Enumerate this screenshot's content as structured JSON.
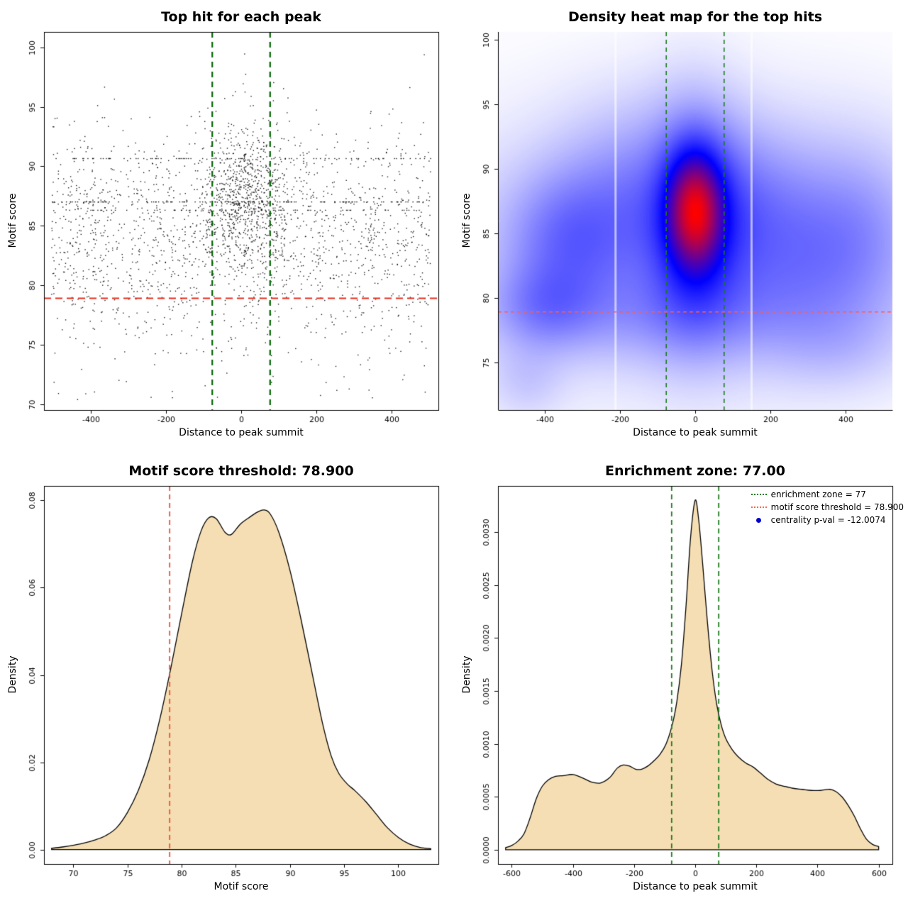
{
  "figure": {
    "background": "#ffffff"
  },
  "chart_data": [
    {
      "type": "scatter",
      "title": "Top hit for each peak",
      "xlabel": "Distance to peak summit",
      "ylabel": "Motif score",
      "xlim": [
        -525,
        525
      ],
      "ylim": [
        69.5,
        101.3
      ],
      "xticks": [
        -400,
        -200,
        0,
        200,
        400
      ],
      "xtick_labels": [
        "-400",
        "-200",
        "0",
        "200",
        "400"
      ],
      "yticks": [
        70,
        75,
        80,
        85,
        90,
        95,
        100
      ],
      "ytick_labels": [
        "70",
        "75",
        "80",
        "85",
        "90",
        "95",
        "100"
      ],
      "box": true,
      "point_color": "#000000",
      "point_size": 1.4,
      "seed": 20240807,
      "clusters": [
        {
          "n": 1650,
          "x": {
            "dist": "uniform",
            "min": -505,
            "max": 505
          },
          "y": {
            "dist": "normal",
            "mean": 84.3,
            "sd": 4.4
          }
        },
        {
          "n": 780,
          "x": {
            "dist": "normal",
            "mean": 12,
            "sd": 58
          },
          "y": {
            "dist": "normal",
            "mean": 87.4,
            "sd": 3.1
          }
        },
        {
          "n": 110,
          "x": {
            "dist": "uniform",
            "min": -505,
            "max": 505
          },
          "y": {
            "dist": "const",
            "value": 87.0
          }
        },
        {
          "n": 85,
          "x": {
            "dist": "uniform",
            "min": -495,
            "max": 505
          },
          "y": {
            "dist": "const",
            "value": 90.65
          }
        },
        {
          "n": 55,
          "x": {
            "dist": "uniform",
            "min": -470,
            "max": 480
          },
          "y": {
            "dist": "const",
            "value": 86.3
          }
        },
        {
          "n": 70,
          "x": {
            "dist": "uniform",
            "min": -500,
            "max": 500
          },
          "y": {
            "dist": "uniform",
            "min": 70.3,
            "max": 78.8
          }
        }
      ],
      "vlines": {
        "x": [
          -77,
          77
        ],
        "color": "#006400",
        "width": 2.2,
        "dash": [
          8,
          6
        ]
      },
      "hlines": {
        "y": [
          78.9
        ],
        "color": "#e62e1e",
        "width": 2,
        "dash": [
          10,
          6
        ]
      }
    },
    {
      "type": "heatmap",
      "title": "Density heat map for the top hits",
      "xlabel": "Distance to peak summit",
      "ylabel": "Motif score",
      "xlim": [
        -525,
        525
      ],
      "ylim": [
        71.3,
        100.6
      ],
      "xticks": [
        -400,
        -200,
        0,
        200,
        400
      ],
      "xtick_labels": [
        "-400",
        "-200",
        "0",
        "200",
        "400"
      ],
      "yticks": [
        75,
        80,
        85,
        90,
        95,
        100
      ],
      "ytick_labels": [
        "75",
        "80",
        "85",
        "90",
        "95",
        "100"
      ],
      "box": false,
      "color_scale": [
        "#ffffff",
        "#0000ff",
        "#ff0000"
      ],
      "density_components": [
        {
          "x": 0,
          "y": 86.8,
          "sx": 48,
          "sy": 3.0,
          "w": 1.0
        },
        {
          "x": 0,
          "y": 86.0,
          "sx": 85,
          "sy": 5.5,
          "w": 0.55
        },
        {
          "x": -340,
          "y": 84.5,
          "sx": 110,
          "sy": 3.5,
          "w": 0.3
        },
        {
          "x": -400,
          "y": 79.3,
          "sx": 90,
          "sy": 2.2,
          "w": 0.22
        },
        {
          "x": 0,
          "y": 84.0,
          "sx": 420,
          "sy": 6.5,
          "w": 0.22
        },
        {
          "x": 280,
          "y": 82.5,
          "sx": 160,
          "sy": 4.0,
          "w": 0.18
        },
        {
          "x": 430,
          "y": 85.5,
          "sx": 110,
          "sy": 4.5,
          "w": 0.16
        },
        {
          "x": -80,
          "y": 78.6,
          "sx": 320,
          "sy": 2.4,
          "w": 0.14
        },
        {
          "x": 150,
          "y": 87.5,
          "sx": 120,
          "sy": 4.0,
          "w": 0.18
        },
        {
          "x": -180,
          "y": 88.0,
          "sx": 120,
          "sy": 4.5,
          "w": 0.18
        },
        {
          "x": -450,
          "y": 73.5,
          "sx": 70,
          "sy": 2.0,
          "w": 0.1
        },
        {
          "x": 380,
          "y": 76.0,
          "sx": 120,
          "sy": 2.2,
          "w": 0.08
        }
      ],
      "white_stripes": [
        -212,
        150
      ],
      "vlines": {
        "x": [
          -77,
          77
        ],
        "color": "#1b7a1b",
        "width": 1.6,
        "dash": [
          6,
          5
        ]
      },
      "hlines": {
        "y": [
          78.9
        ],
        "color": "#ff5c4d",
        "width": 1.3,
        "dash": [
          5,
          4
        ]
      }
    },
    {
      "type": "density",
      "title": "Motif score threshold: 78.900",
      "xlabel": "Motif score",
      "ylabel": "Density",
      "xlim": [
        67.3,
        103.7
      ],
      "ylim": [
        -0.0033,
        0.0833
      ],
      "xticks": [
        70,
        75,
        80,
        85,
        90,
        95,
        100
      ],
      "xtick_labels": [
        "70",
        "75",
        "80",
        "85",
        "90",
        "95",
        "100"
      ],
      "yticks": [
        0,
        0.02,
        0.04,
        0.06,
        0.08
      ],
      "ytick_labels": [
        "0.00",
        "0.02",
        "0.04",
        "0.06",
        "0.08"
      ],
      "box": true,
      "fill": "#f5deb3",
      "line_color": "#000000",
      "curve": [
        [
          68,
          0.0003
        ],
        [
          69,
          0.0006
        ],
        [
          70,
          0.001
        ],
        [
          71,
          0.0015
        ],
        [
          72,
          0.0022
        ],
        [
          73,
          0.0032
        ],
        [
          74,
          0.005
        ],
        [
          75,
          0.0085
        ],
        [
          76,
          0.0135
        ],
        [
          77,
          0.0205
        ],
        [
          78,
          0.03
        ],
        [
          79,
          0.0415
        ],
        [
          80,
          0.054
        ],
        [
          81,
          0.066
        ],
        [
          81.8,
          0.073
        ],
        [
          82.5,
          0.076
        ],
        [
          83.2,
          0.0758
        ],
        [
          84,
          0.0727
        ],
        [
          84.6,
          0.0722
        ],
        [
          85.4,
          0.0745
        ],
        [
          86.2,
          0.076
        ],
        [
          87,
          0.0773
        ],
        [
          87.6,
          0.0778
        ],
        [
          88.2,
          0.0768
        ],
        [
          89,
          0.0725
        ],
        [
          90,
          0.064
        ],
        [
          91,
          0.053
        ],
        [
          92,
          0.041
        ],
        [
          93,
          0.029
        ],
        [
          93.8,
          0.0215
        ],
        [
          94.5,
          0.0175
        ],
        [
          95.3,
          0.015
        ],
        [
          96,
          0.0135
        ],
        [
          97,
          0.011
        ],
        [
          98,
          0.008
        ],
        [
          99,
          0.005
        ],
        [
          100,
          0.0028
        ],
        [
          101,
          0.0013
        ],
        [
          102,
          0.0005
        ],
        [
          103,
          0.0002
        ]
      ],
      "vlines": {
        "x": [
          78.9
        ],
        "color": "#e8503a",
        "width": 1.8,
        "dash": [
          7,
          5
        ]
      }
    },
    {
      "type": "density",
      "title": "Enrichment zone: 77.00",
      "xlabel": "Distance to peak summit",
      "ylabel": "Density",
      "xlim": [
        -645,
        645
      ],
      "ylim": [
        -0.000135,
        0.003435
      ],
      "xticks": [
        -600,
        -400,
        -200,
        0,
        200,
        400,
        600
      ],
      "xtick_labels": [
        "-600",
        "-400",
        "-200",
        "0",
        "200",
        "400",
        "600"
      ],
      "yticks": [
        0,
        0.0005,
        0.001,
        0.0015,
        0.002,
        0.0025,
        0.003
      ],
      "ytick_labels": [
        "0.0000",
        "0.0005",
        "0.0010",
        "0.0015",
        "0.0020",
        "0.0025",
        "0.0030"
      ],
      "box": true,
      "fill": "#f5deb3",
      "line_color": "#000000",
      "curve": [
        [
          -620,
          2e-05
        ],
        [
          -600,
          4e-05
        ],
        [
          -580,
          8e-05
        ],
        [
          -560,
          0.00015
        ],
        [
          -540,
          0.0003
        ],
        [
          -520,
          0.00048
        ],
        [
          -500,
          0.0006
        ],
        [
          -480,
          0.00066
        ],
        [
          -460,
          0.00069
        ],
        [
          -430,
          0.0007
        ],
        [
          -400,
          0.00071
        ],
        [
          -370,
          0.00068
        ],
        [
          -340,
          0.00064
        ],
        [
          -310,
          0.00063
        ],
        [
          -280,
          0.00068
        ],
        [
          -255,
          0.00077
        ],
        [
          -235,
          0.0008
        ],
        [
          -215,
          0.00079
        ],
        [
          -195,
          0.00076
        ],
        [
          -175,
          0.00076
        ],
        [
          -155,
          0.00079
        ],
        [
          -135,
          0.00084
        ],
        [
          -115,
          0.0009
        ],
        [
          -95,
          0.001
        ],
        [
          -75,
          0.00118
        ],
        [
          -60,
          0.0014
        ],
        [
          -45,
          0.00175
        ],
        [
          -30,
          0.0023
        ],
        [
          -15,
          0.00295
        ],
        [
          0,
          0.0033
        ],
        [
          12,
          0.0031
        ],
        [
          25,
          0.00268
        ],
        [
          40,
          0.00215
        ],
        [
          55,
          0.0017
        ],
        [
          70,
          0.00138
        ],
        [
          85,
          0.00118
        ],
        [
          100,
          0.00105
        ],
        [
          120,
          0.00095
        ],
        [
          140,
          0.00088
        ],
        [
          165,
          0.00082
        ],
        [
          190,
          0.00078
        ],
        [
          215,
          0.00072
        ],
        [
          240,
          0.00066
        ],
        [
          265,
          0.00062
        ],
        [
          290,
          0.0006
        ],
        [
          320,
          0.00058
        ],
        [
          350,
          0.00057
        ],
        [
          380,
          0.00056
        ],
        [
          410,
          0.00056
        ],
        [
          440,
          0.00057
        ],
        [
          460,
          0.00055
        ],
        [
          480,
          0.0005
        ],
        [
          500,
          0.00042
        ],
        [
          520,
          0.00032
        ],
        [
          540,
          0.0002
        ],
        [
          560,
          0.0001
        ],
        [
          580,
          5e-05
        ],
        [
          600,
          3e-05
        ]
      ],
      "vlines": {
        "x": [
          -77,
          77
        ],
        "color": "#1b7a1b",
        "width": 1.8,
        "dash": [
          7,
          5
        ]
      },
      "legend": [
        {
          "label": "enrichment zone = 77",
          "color": "#1b7a1b",
          "marker": "dotted-line"
        },
        {
          "label": "motif score threshold = 78.900",
          "color": "#ff6347",
          "marker": "dotted-line"
        },
        {
          "label": "centrality p-val = -12.0074",
          "color": "#0000cd",
          "marker": "dot"
        }
      ]
    }
  ]
}
